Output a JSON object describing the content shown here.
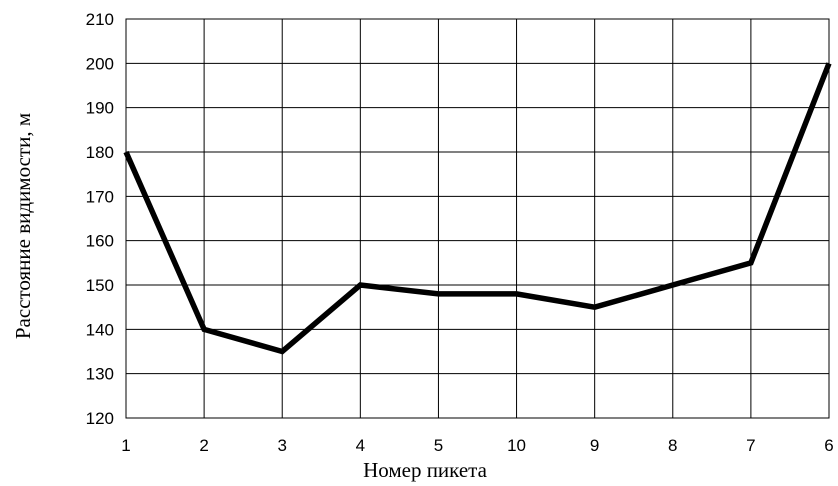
{
  "chart_data": {
    "type": "line",
    "title": "",
    "xlabel": "Номер пикета",
    "ylabel": "Расстояние видимости, м",
    "categories": [
      "1",
      "2",
      "3",
      "4",
      "5",
      "10",
      "9",
      "8",
      "7",
      "6"
    ],
    "series": [
      {
        "values": [
          180,
          140,
          135,
          150,
          148,
          148,
          145,
          150,
          155,
          200
        ]
      }
    ],
    "ylim": [
      120,
      210
    ],
    "yticks": [
      "120",
      "130",
      "140",
      "150",
      "160",
      "170",
      "180",
      "190",
      "200",
      "210"
    ],
    "grid": true,
    "legend": "none",
    "colors": {
      "line": "#000000",
      "grid": "#000000"
    }
  }
}
